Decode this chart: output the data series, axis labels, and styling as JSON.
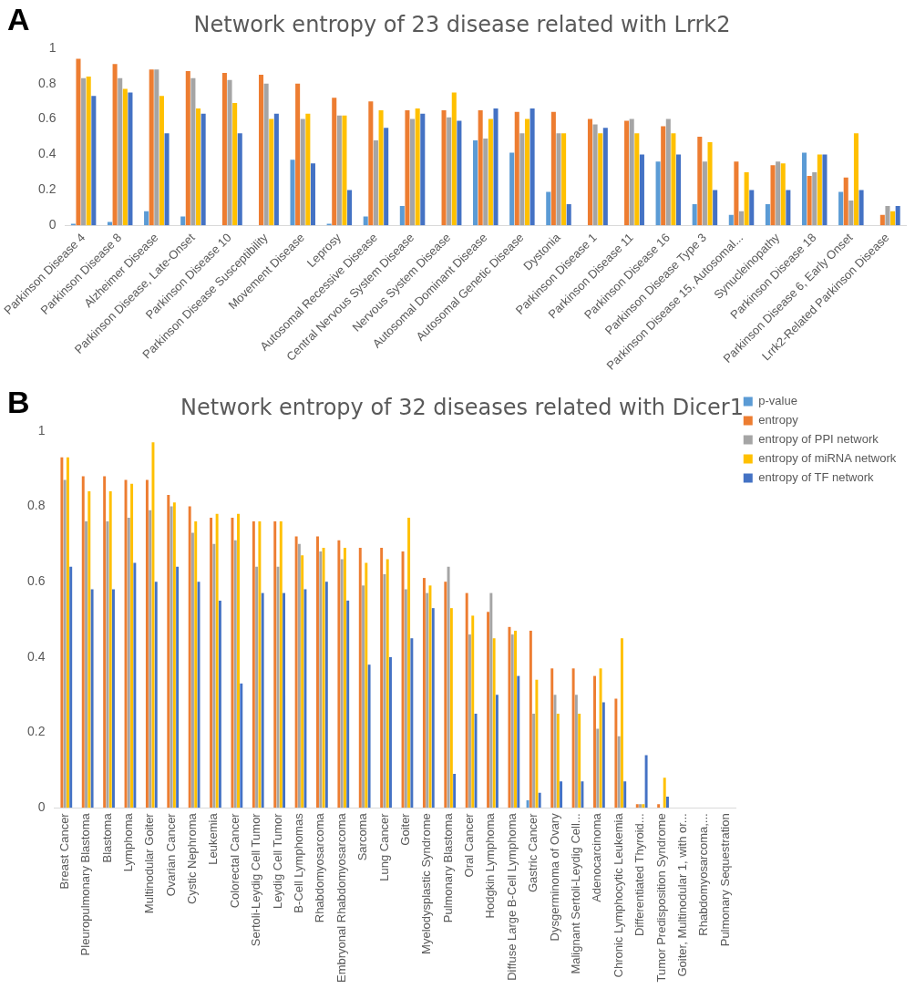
{
  "chart_data": [
    {
      "type": "bar",
      "title": "Network entropy of 23 disease related with Lrrk2",
      "annotations": [
        "A"
      ],
      "categories": [
        "Parkinson Disease 4",
        "Parkinson Disease 8",
        "Alzheimer Disease",
        "Parkinson Disease, Late-Onset",
        "Parkinson Disease 10",
        "Parkinson Disease Susceptibility",
        "Movement Disease",
        "Leprosy",
        "Autosomal Recessive Disease",
        "Central Nervous System Disease",
        "Nervous System Disease",
        "Autosomal Dominant Disease",
        "Autosomal Genetic Disease",
        "Dystonia",
        "Parkinson Disease 1",
        "Parkinson Disease 11",
        "Parkinson Disease 16",
        "Parkinson Disease Type 3",
        "Parkinson Disease 15, Autosomal...",
        "Synucleinopathy",
        "Parkinson Disease 18",
        "Parkinson Disease 6, Early Onset",
        "Lrrk2-Related Parkinson Disease"
      ],
      "series": [
        {
          "color": "#5b9bd5",
          "values": [
            0.01,
            0.02,
            0.08,
            0.05,
            0,
            0,
            0.37,
            0.01,
            0.05,
            0.11,
            0,
            0.48,
            0.41,
            0.19,
            0,
            0,
            0.36,
            0.12,
            0.06,
            0.12,
            0.41,
            0.19,
            0
          ]
        },
        {
          "color": "#ed7d31",
          "values": [
            0.94,
            0.91,
            0.88,
            0.87,
            0.86,
            0.85,
            0.8,
            0.72,
            0.7,
            0.65,
            0.65,
            0.65,
            0.64,
            0.64,
            0.6,
            0.59,
            0.56,
            0.5,
            0.36,
            0.34,
            0.28,
            0.27,
            0.06
          ]
        },
        {
          "color": "#a5a5a5",
          "values": [
            0.83,
            0.83,
            0.88,
            0.83,
            0.82,
            0.8,
            0.6,
            0.62,
            0.48,
            0.6,
            0.61,
            0.49,
            0.52,
            0.52,
            0.57,
            0.6,
            0.6,
            0.36,
            0.08,
            0.36,
            0.3,
            0.14,
            0.11
          ]
        },
        {
          "color": "#ffc000",
          "values": [
            0.84,
            0.77,
            0.73,
            0.66,
            0.69,
            0.6,
            0.63,
            0.62,
            0.65,
            0.66,
            0.75,
            0.6,
            0.6,
            0.52,
            0.52,
            0.52,
            0.52,
            0.47,
            0.3,
            0.35,
            0.4,
            0.52,
            0.08
          ]
        },
        {
          "color": "#4472c4",
          "values": [
            0.73,
            0.75,
            0.52,
            0.63,
            0.52,
            0.63,
            0.35,
            0.2,
            0.55,
            0.63,
            0.59,
            0.66,
            0.66,
            0.12,
            0.55,
            0.4,
            0.4,
            0.2,
            0.2,
            0.2,
            0.4,
            0.2,
            0.11
          ]
        }
      ],
      "ylim": [
        0,
        1
      ],
      "yticks": [
        0,
        0.2,
        0.4,
        0.6,
        0.8,
        1
      ],
      "grid": false,
      "legend": false
    },
    {
      "type": "bar",
      "title": "Network entropy of 32 diseases related with Dicer1",
      "annotations": [
        "B"
      ],
      "categories": [
        "Breast Cancer",
        "Pleuropulmonary Blastoma",
        "Blastoma",
        "Lymphoma",
        "Multinodular Goiter",
        "Ovarian Cancer",
        "Cystic Nephroma",
        "Leukemia",
        "Colorectal Cancer",
        "Sertoli-Leydig Cell Tumor",
        "Leydig Cell Tumor",
        "B-Cell Lymphomas",
        "Rhabdomyosarcoma",
        "Embryonal Rhabdomyosarcoma",
        "Sarcoma",
        "Lung Cancer",
        "Goiter",
        "Myelodysplastic Syndrome",
        "Pulmonary Blastoma",
        "Oral Cancer",
        "Hodgkin Lymphoma",
        "Diffuse Large B-Cell Lymphoma",
        "Gastric Cancer",
        "Dysgerminoma of Ovary",
        "Malignant Sertoli-Leydig Cell...",
        "Adenocarcinoma",
        "Chronic Lymphocytic Leukemia",
        "Differentiated Thyroid...",
        "Tumor Predisposition Syndrome",
        "Goiter, Multinodular 1, with or...",
        "Rhabdomyosarcoma,...",
        "Pulmonary Sequestration"
      ],
      "series": [
        {
          "name": "p-value",
          "color": "#5b9bd5",
          "values": [
            0,
            0,
            0,
            0,
            0,
            0,
            0,
            0,
            0,
            0,
            0,
            0,
            0,
            0,
            0,
            0,
            0,
            0,
            0,
            0,
            0,
            0,
            0.02,
            0,
            0,
            0,
            0,
            0,
            0,
            0,
            0,
            0
          ]
        },
        {
          "name": "entropy",
          "color": "#ed7d31",
          "values": [
            0.93,
            0.88,
            0.88,
            0.87,
            0.87,
            0.83,
            0.8,
            0.77,
            0.77,
            0.76,
            0.76,
            0.72,
            0.72,
            0.71,
            0.69,
            0.69,
            0.68,
            0.61,
            0.6,
            0.57,
            0.52,
            0.48,
            0.47,
            0.37,
            0.37,
            0.35,
            0.29,
            0.01,
            0.01,
            0,
            0,
            0
          ]
        },
        {
          "name": "entropy of PPI network",
          "color": "#a5a5a5",
          "values": [
            0.87,
            0.76,
            0.76,
            0.77,
            0.79,
            0.8,
            0.73,
            0.7,
            0.71,
            0.64,
            0.64,
            0.7,
            0.68,
            0.66,
            0.59,
            0.62,
            0.58,
            0.57,
            0.64,
            0.46,
            0.57,
            0.46,
            0.25,
            0.3,
            0.3,
            0.21,
            0.19,
            0.01,
            0,
            0,
            0,
            0
          ]
        },
        {
          "name": "entropy of miRNA network",
          "color": "#ffc000",
          "values": [
            0.93,
            0.84,
            0.84,
            0.86,
            0.97,
            0.81,
            0.76,
            0.78,
            0.78,
            0.76,
            0.76,
            0.67,
            0.69,
            0.69,
            0.65,
            0.66,
            0.77,
            0.59,
            0.53,
            0.51,
            0.45,
            0.47,
            0.34,
            0.25,
            0.25,
            0.37,
            0.45,
            0.01,
            0.08,
            0,
            0,
            0
          ]
        },
        {
          "name": "entropy of TF network",
          "color": "#4472c4",
          "values": [
            0.64,
            0.58,
            0.58,
            0.65,
            0.6,
            0.64,
            0.6,
            0.55,
            0.33,
            0.57,
            0.57,
            0.58,
            0.6,
            0.55,
            0.38,
            0.4,
            0.45,
            0.53,
            0.09,
            0.25,
            0.3,
            0.35,
            0.04,
            0.07,
            0.07,
            0.28,
            0.07,
            0.14,
            0.03,
            0,
            0,
            0
          ]
        }
      ],
      "ylim": [
        0,
        1
      ],
      "yticks": [
        0,
        0.2,
        0.4,
        0.6,
        0.8,
        1
      ],
      "grid": false,
      "legend": "top right"
    }
  ]
}
